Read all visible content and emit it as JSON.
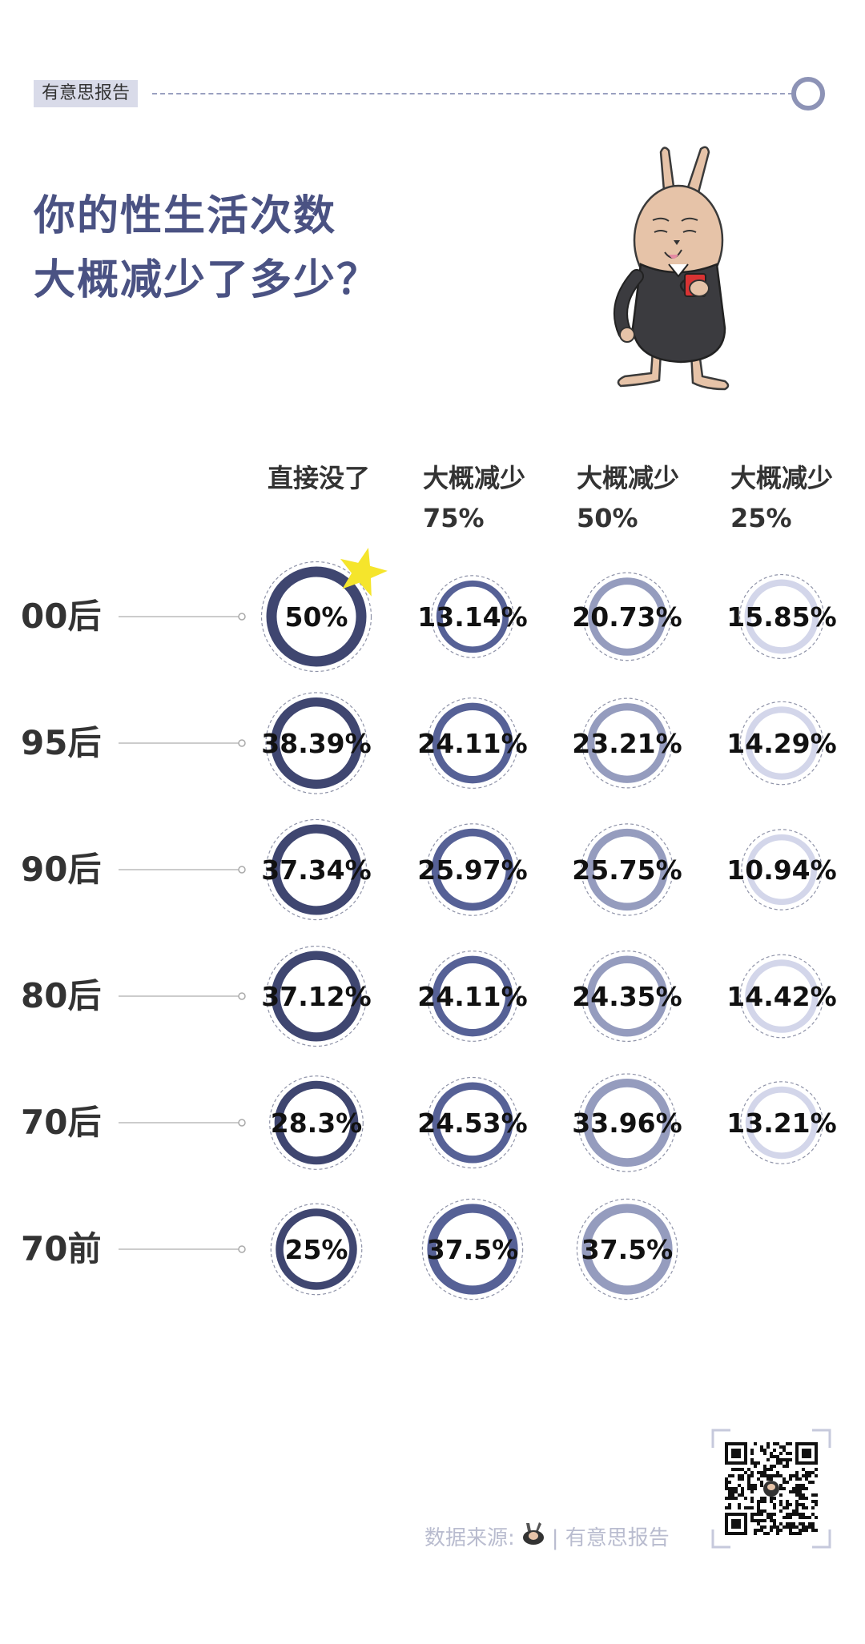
{
  "header": {
    "brand": "有意思报告"
  },
  "title": {
    "line1": "你的性生活次数",
    "line2": "大概减少了多少？"
  },
  "footer": {
    "source_label": "数据来源:",
    "source_brand": "| 有意思报告"
  },
  "colors": {
    "col1": "#3f4670",
    "col2": "#566196",
    "col3": "#959cbe",
    "col4": "#d3d6ea",
    "title": "#4a5283",
    "star": "#f5e52c"
  },
  "icons": {
    "mascot": "rabbit-with-coffee-mug-icon",
    "star": "star-icon",
    "qr": "qr-code-icon"
  },
  "chart_data": {
    "type": "table",
    "columns": [
      [
        "直接没了",
        ""
      ],
      [
        "大概减少",
        "75%"
      ],
      [
        "大概减少",
        "50%"
      ],
      [
        "大概减少",
        "25%"
      ]
    ],
    "rows": [
      "00后",
      "95后",
      "90后",
      "80后",
      "70后",
      "70前"
    ],
    "values": [
      [
        50,
        13.14,
        20.73,
        15.85
      ],
      [
        38.39,
        24.11,
        23.21,
        14.29
      ],
      [
        37.34,
        25.97,
        25.75,
        10.94
      ],
      [
        37.12,
        24.11,
        24.35,
        14.42
      ],
      [
        28.3,
        24.53,
        33.96,
        13.21
      ],
      [
        25,
        37.5,
        37.5,
        null
      ]
    ],
    "labels": [
      [
        "50%",
        "13.14%",
        "20.73%",
        "15.85%"
      ],
      [
        "38.39%",
        "24.11%",
        "23.21%",
        "14.29%"
      ],
      [
        "37.34%",
        "25.97%",
        "25.75%",
        "10.94%"
      ],
      [
        "37.12%",
        "24.11%",
        "24.35%",
        "14.42%"
      ],
      [
        "28.3%",
        "24.53%",
        "33.96%",
        "13.21%"
      ],
      [
        "25%",
        "37.5%",
        "37.5%",
        null
      ]
    ],
    "unit": "%"
  }
}
